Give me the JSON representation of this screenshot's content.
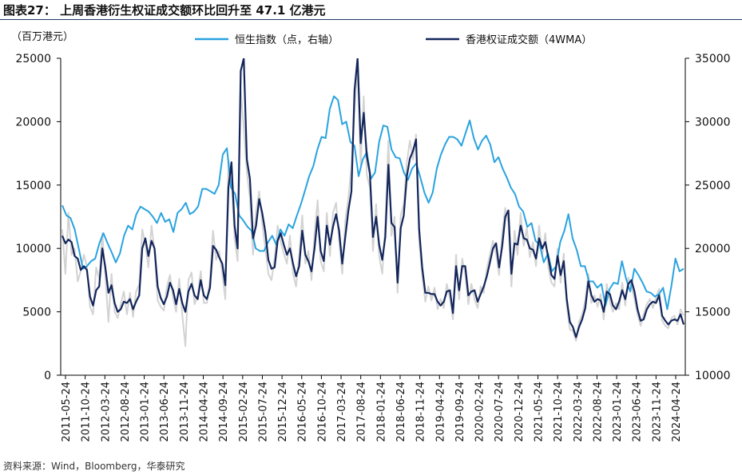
{
  "figure": {
    "title": "图表27： 上周香港衍生权证成交额环比回升至 47.1 亿港元",
    "unit_label": "（百万港元）",
    "source": "资料来源：Wind，Bloomberg，华泰研究"
  },
  "colors": {
    "hsi": "#29a3e0",
    "turnover_4wma": "#13265c",
    "turnover_weekly": "#d3d3d3",
    "title_rule": "#1f3a6b"
  },
  "chart_data": {
    "type": "line",
    "x_labels": [
      "2011-05-24",
      "2011-10-24",
      "2012-03-24",
      "2012-08-24",
      "2013-01-24",
      "2013-06-24",
      "2013-11-24",
      "2014-04-24",
      "2014-09-24",
      "2015-02-24",
      "2015-07-24",
      "2015-12-24",
      "2016-05-24",
      "2016-10-24",
      "2017-03-24",
      "2017-08-24",
      "2018-01-24",
      "2018-06-24",
      "2018-11-24",
      "2019-04-24",
      "2019-09-24",
      "2020-02-24",
      "2020-07-24",
      "2020-12-24",
      "2021-05-24",
      "2021-10-24",
      "2022-03-24",
      "2022-08-24",
      "2023-01-24",
      "2023-06-24",
      "2023-11-24",
      "2024-04-24"
    ],
    "y_left": {
      "label": "（百万港元）",
      "min": 0,
      "max": 25000,
      "ticks": [
        0,
        5000,
        10000,
        15000,
        20000,
        25000
      ]
    },
    "y_right": {
      "min": 10000,
      "max": 35000,
      "ticks": [
        10000,
        15000,
        20000,
        25000,
        30000,
        35000
      ]
    },
    "legend": {
      "position": "top"
    },
    "grid": false,
    "series": [
      {
        "name": "恒生指数（点，右轴）",
        "axis": "right",
        "values": [
          23400,
          22600,
          22400,
          21500,
          20000,
          18400,
          18600,
          19000,
          19200,
          20400,
          21200,
          20400,
          19700,
          18900,
          19600,
          21000,
          21800,
          21500,
          22700,
          23300,
          23100,
          22900,
          22500,
          22000,
          22800,
          22100,
          22300,
          21300,
          22800,
          23100,
          23600,
          22700,
          22900,
          23300,
          24700,
          24700,
          24500,
          24300,
          25000,
          27400,
          27900,
          24800,
          24300,
          22600,
          22200,
          21700,
          21400,
          20000,
          19800,
          19800,
          20500,
          21000,
          20300,
          21500,
          21000,
          21900,
          21600,
          22600,
          23500,
          24600,
          25700,
          26500,
          27800,
          28800,
          28700,
          31000,
          32000,
          31700,
          29800,
          30000,
          28400,
          28100,
          25700,
          27000,
          27600,
          25500,
          26000,
          28400,
          29700,
          29600,
          27800,
          27200,
          27100,
          26000,
          25400,
          26300,
          26700,
          25600,
          24400,
          23600,
          24400,
          26300,
          27400,
          28200,
          28800,
          28800,
          28600,
          28100,
          29100,
          30100,
          28700,
          27800,
          28500,
          28900,
          28200,
          26800,
          27200,
          26300,
          25600,
          24800,
          24300,
          23300,
          22900,
          21700,
          22000,
          20600,
          20300,
          18900,
          19600,
          18200,
          18600,
          20500,
          21400,
          22700,
          20800,
          19900,
          18600,
          18600,
          17400,
          17400,
          16900,
          17200,
          15500,
          16800,
          17300,
          17200,
          19000,
          17600,
          16600,
          18400,
          17900,
          17300,
          16600,
          16500,
          16200,
          16400,
          16900,
          15200,
          17000,
          19200,
          18200,
          18400
        ]
      },
      {
        "name": "香港权证成交额（4WMA）",
        "axis": "left",
        "values": [
          11000,
          10400,
          10700,
          10500,
          9400,
          9200,
          8300,
          8600,
          8300,
          6200,
          5500,
          6700,
          7000,
          10000,
          8500,
          6500,
          7100,
          5700,
          5000,
          5200,
          5800,
          5700,
          6000,
          5200,
          5800,
          6300,
          10000,
          10800,
          9400,
          10600,
          10000,
          7000,
          6100,
          5600,
          6200,
          7300,
          6700,
          5600,
          6800,
          5700,
          5000,
          6600,
          7200,
          6300,
          6000,
          7500,
          6300,
          6000,
          6900,
          10200,
          9900,
          9300,
          8800,
          7100,
          14800,
          16800,
          11800,
          10000,
          24000,
          25000,
          17000,
          15500,
          10800,
          11800,
          13900,
          12800,
          11300,
          9100,
          8400,
          8500,
          10600,
          11200,
          10300,
          9500,
          10000,
          8800,
          7800,
          8600,
          11400,
          9500,
          9000,
          8200,
          10000,
          12500,
          9800,
          9000,
          11800,
          10300,
          11700,
          12700,
          11400,
          8800,
          10900,
          13000,
          14500,
          22500,
          25000,
          18300,
          20700,
          17300,
          15900,
          10900,
          12500,
          10300,
          9100,
          10900,
          16600,
          12000,
          11700,
          7300,
          11600,
          12600,
          15700,
          17100,
          17700,
          18600,
          11500,
          8500,
          6500,
          6500,
          6400,
          6400,
          5800,
          5500,
          5800,
          6600,
          6700,
          4900,
          8600,
          6700,
          8600,
          8600,
          6300,
          6600,
          6700,
          5800,
          6400,
          7000,
          7800,
          8900,
          10000,
          10400,
          8500,
          10200,
          12500,
          13000,
          8000,
          10400,
          10300,
          11800,
          10800,
          10700,
          10000,
          9900,
          9200,
          10800,
          10000,
          10500,
          9300,
          7900,
          7600,
          9400,
          7900,
          9000,
          6000,
          4200,
          3800,
          3000,
          3800,
          4400,
          5300,
          7400,
          6300,
          5800,
          6000,
          5900,
          5000,
          6600,
          6400,
          5500,
          5200,
          5800,
          6700,
          6000,
          7200,
          7500,
          6600,
          5200,
          4300,
          4400,
          5200,
          5600,
          5800,
          5700,
          6300,
          4700,
          4300,
          4000,
          4300,
          4400,
          4300,
          4800,
          4000
        ]
      },
      {
        "name": "",
        "axis": "left",
        "style": "weekly",
        "values": [
          11500,
          8000,
          12800,
          9500,
          10000,
          7400,
          8200,
          9500,
          8600,
          5400,
          4800,
          8500,
          7600,
          11200,
          7800,
          4200,
          8000,
          5000,
          4500,
          5600,
          6600,
          4800,
          6500,
          4600,
          6600,
          7200,
          11500,
          10300,
          8500,
          11800,
          9800,
          5900,
          5400,
          5100,
          7000,
          7900,
          6100,
          5000,
          7600,
          4800,
          2300,
          7500,
          8100,
          5600,
          6300,
          8200,
          5700,
          5700,
          7600,
          11400,
          9100,
          9800,
          8000,
          6000,
          17000,
          15500,
          10800,
          9000,
          22500,
          19500,
          16000,
          14000,
          9500,
          13000,
          14500,
          12000,
          10000,
          8000,
          7500,
          9200,
          11800,
          10500,
          9600,
          8800,
          11000,
          8000,
          7000,
          9500,
          12600,
          8800,
          9800,
          7500,
          11200,
          13800,
          9000,
          8200,
          12800,
          9400,
          12800,
          13600,
          10600,
          8000,
          12200,
          14000,
          16500,
          21000,
          24500,
          16500,
          22000,
          15800,
          14800,
          9800,
          13500,
          9400,
          8000,
          12000,
          18500,
          11000,
          12500,
          6500,
          12600,
          13500,
          16800,
          18500,
          17000,
          19000,
          10500,
          7800,
          5800,
          7000,
          5900,
          6900,
          5200,
          6000,
          5300,
          7200,
          6100,
          4400,
          9500,
          6000,
          9200,
          8000,
          5600,
          7200,
          6000,
          5300,
          7000,
          6500,
          8400,
          9500,
          10600,
          9600,
          7900,
          11200,
          13200,
          12000,
          7000,
          11400,
          9500,
          12800,
          10200,
          11600,
          9300,
          10500,
          8600,
          11800,
          9400,
          11200,
          8500,
          7300,
          7000,
          10000,
          7300,
          9600,
          5400,
          3600,
          3500,
          2700,
          4200,
          4800,
          5900,
          8000,
          5700,
          6300,
          5400,
          6400,
          4400,
          7200,
          5800,
          5000,
          5700,
          5200,
          7300,
          5500,
          7700,
          7000,
          6000,
          4800,
          3900,
          4800,
          5600,
          6000,
          5300,
          6100,
          6800,
          4300,
          3900,
          3700,
          4500,
          4700,
          4000,
          5200,
          4710
        ]
      }
    ]
  }
}
